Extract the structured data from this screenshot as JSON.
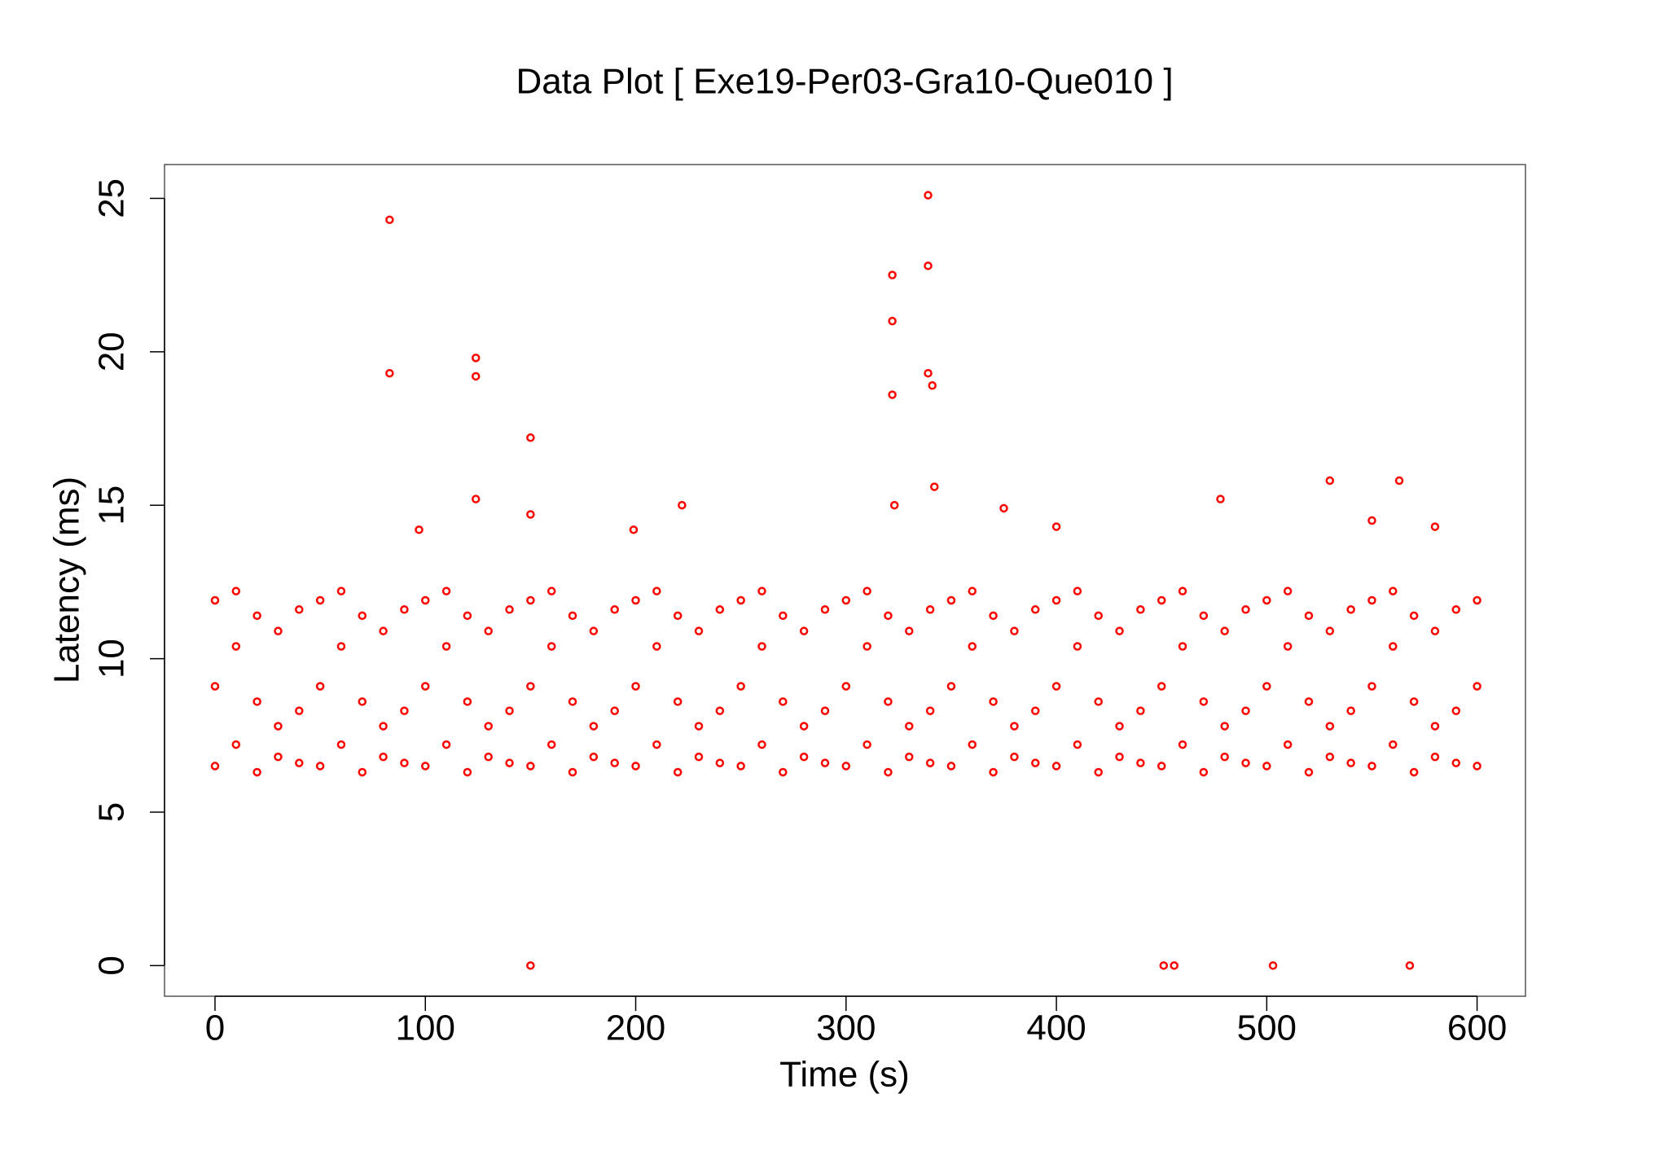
{
  "chart_data": {
    "type": "scatter",
    "title": "Data Plot [ Exe19-Per03-Gra10-Que010 ]",
    "x_label": "Time (s)",
    "y_label": "Latency (ms)",
    "color": "#ff0000",
    "xlim": [
      -24,
      623
    ],
    "xticks": [
      0,
      100,
      200,
      300,
      400,
      500,
      600
    ],
    "ylim": [
      -1,
      26.1
    ],
    "yticks": [
      0,
      5,
      10,
      15,
      20,
      25
    ],
    "grid": false,
    "x": [
      0,
      0,
      0,
      10,
      10,
      10,
      20,
      20,
      20,
      30,
      30,
      30,
      40,
      40,
      40,
      50,
      50,
      50,
      60,
      60,
      60,
      70,
      70,
      70,
      80,
      80,
      80,
      90,
      90,
      90,
      100,
      100,
      100,
      110,
      110,
      110,
      120,
      120,
      120,
      130,
      130,
      130,
      140,
      140,
      140,
      150,
      150,
      150,
      160,
      160,
      160,
      170,
      170,
      170,
      180,
      180,
      180,
      190,
      190,
      190,
      200,
      200,
      200,
      210,
      210,
      210,
      220,
      220,
      220,
      230,
      230,
      230,
      240,
      240,
      240,
      250,
      250,
      250,
      260,
      260,
      260,
      270,
      270,
      270,
      280,
      280,
      280,
      290,
      290,
      290,
      300,
      300,
      300,
      310,
      310,
      310,
      320,
      320,
      320,
      330,
      330,
      330,
      340,
      340,
      340,
      350,
      350,
      350,
      360,
      360,
      360,
      370,
      370,
      370,
      380,
      380,
      380,
      390,
      390,
      390,
      400,
      400,
      400,
      410,
      410,
      410,
      420,
      420,
      420,
      430,
      430,
      430,
      440,
      440,
      440,
      450,
      450,
      450,
      460,
      460,
      460,
      470,
      470,
      470,
      480,
      480,
      480,
      490,
      490,
      490,
      500,
      500,
      500,
      510,
      510,
      510,
      520,
      520,
      520,
      530,
      530,
      530,
      540,
      540,
      540,
      550,
      550,
      550,
      560,
      560,
      560,
      570,
      570,
      570,
      580,
      580,
      580,
      590,
      590,
      590,
      600,
      600,
      600,
      83,
      83,
      124,
      124,
      150,
      150,
      322,
      322,
      322,
      339,
      339,
      339,
      341,
      342,
      124,
      150,
      530,
      563,
      478,
      323,
      451,
      456,
      503,
      568,
      222,
      375,
      400,
      97,
      199,
      550,
      580
    ],
    "y": [
      6.5,
      9.1,
      11.9,
      7.2,
      10.4,
      12.2,
      6.3,
      8.6,
      11.4,
      7.8,
      10.9,
      6.8,
      8.3,
      11.6,
      6.6,
      6.5,
      9.1,
      11.9,
      7.2,
      10.4,
      12.2,
      6.3,
      8.6,
      11.4,
      7.8,
      10.9,
      6.8,
      8.3,
      11.6,
      6.6,
      6.5,
      9.1,
      11.9,
      7.2,
      10.4,
      12.2,
      6.3,
      8.6,
      11.4,
      7.8,
      10.9,
      6.8,
      8.3,
      11.6,
      6.6,
      6.5,
      9.1,
      11.9,
      7.2,
      10.4,
      12.2,
      6.3,
      8.6,
      11.4,
      7.8,
      10.9,
      6.8,
      8.3,
      11.6,
      6.6,
      6.5,
      9.1,
      11.9,
      7.2,
      10.4,
      12.2,
      6.3,
      8.6,
      11.4,
      7.8,
      10.9,
      6.8,
      8.3,
      11.6,
      6.6,
      6.5,
      9.1,
      11.9,
      7.2,
      10.4,
      12.2,
      6.3,
      8.6,
      11.4,
      7.8,
      10.9,
      6.8,
      8.3,
      11.6,
      6.6,
      6.5,
      9.1,
      11.9,
      7.2,
      10.4,
      12.2,
      6.3,
      8.6,
      11.4,
      7.8,
      10.9,
      6.8,
      8.3,
      11.6,
      6.6,
      6.5,
      9.1,
      11.9,
      7.2,
      10.4,
      12.2,
      6.3,
      8.6,
      11.4,
      7.8,
      10.9,
      6.8,
      8.3,
      11.6,
      6.6,
      6.5,
      9.1,
      11.9,
      7.2,
      10.4,
      12.2,
      6.3,
      8.6,
      11.4,
      7.8,
      10.9,
      6.8,
      8.3,
      11.6,
      6.6,
      6.5,
      9.1,
      11.9,
      7.2,
      10.4,
      12.2,
      6.3,
      8.6,
      11.4,
      7.8,
      10.9,
      6.8,
      8.3,
      11.6,
      6.6,
      6.5,
      9.1,
      11.9,
      7.2,
      10.4,
      12.2,
      6.3,
      8.6,
      11.4,
      7.8,
      10.9,
      6.8,
      8.3,
      11.6,
      6.6,
      6.5,
      9.1,
      11.9,
      7.2,
      10.4,
      12.2,
      6.3,
      8.6,
      11.4,
      7.8,
      10.9,
      6.8,
      8.3,
      11.6,
      6.6,
      6.5,
      9.1,
      11.9,
      24.3,
      19.3,
      19.8,
      19.2,
      17.2,
      0,
      22.5,
      21,
      18.6,
      25.1,
      22.8,
      19.3,
      18.9,
      15.6,
      15.2,
      14.7,
      15.8,
      15.8,
      15.2,
      15,
      0,
      0,
      0,
      0,
      15,
      14.9,
      14.3,
      14.2,
      14.2,
      14.5,
      14.3
    ]
  }
}
